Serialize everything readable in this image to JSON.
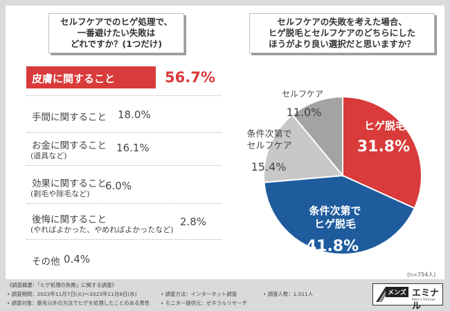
{
  "left_question": "セルフケアでのヒゲ処理で、\n一番避けたい失敗は\nどれですか？(1つだけ)",
  "right_question": "セルフケアの失敗を考えた場合、\nヒゲ脱毛とセルフケアのどちらにした\nほうがより良い選択だと思いますか？",
  "chart_data": [
    {
      "type": "bar",
      "title": "セルフケアでのヒゲ処理で、一番避けたい失敗はどれですか？(1つだけ)",
      "categories": [
        "皮膚に関すること",
        "手間に関すること",
        "お金に関すること",
        "効果に関すること",
        "後悔に関すること",
        "その他"
      ],
      "sublabels": [
        "",
        "",
        "(道具など)",
        "(剃毛や除毛など)",
        "(やればよかった、やめればよかったなど)",
        ""
      ],
      "values": [
        56.7,
        18.0,
        16.1,
        6.0,
        2.8,
        0.4
      ],
      "value_labels": [
        "56.7%",
        "18.0%",
        "16.1%",
        "6.0%",
        "2.8%",
        "0.4%"
      ],
      "unit": "%",
      "highlight_color": "#d93a3a"
    },
    {
      "type": "pie",
      "title": "セルフケアの失敗を考えた場合、ヒゲ脱毛とセルフケアのどちらにしたほうがより良い選択だと思いますか？",
      "slices": [
        {
          "label": "ヒゲ脱毛",
          "value": 31.8,
          "value_label": "31.8%",
          "color": "#d93a3a"
        },
        {
          "label": "条件次第でヒゲ脱毛",
          "value": 41.8,
          "value_label": "41.8%",
          "color": "#1f5c9e"
        },
        {
          "label": "条件次第でセルフケア",
          "value": 15.4,
          "value_label": "15.4%",
          "color": "#c8c8c8"
        },
        {
          "label": "セルフケア",
          "value": 11.0,
          "value_label": "11.0%",
          "color": "#a3a3a3"
        }
      ],
      "n_note": "(n=754人)"
    }
  ],
  "footer": {
    "line1": "《調査概要：「ヒゲ処理の失敗」に関する調査》",
    "period": "• 調査期間：2023年11月7日(火)〜2023年11月8日(水)",
    "method": "• 調査方法：インターネット調査",
    "count": "• 調査人数：1,011人",
    "target": "• 調査対象：脱毛以外の方法でヒゲを処理したことのある男性",
    "provider": "• モニター提供元：ゼネラルリサーチ"
  },
  "logo": {
    "mens": "メンズ",
    "name": "エミナル",
    "sub": "Men's Eminal"
  }
}
